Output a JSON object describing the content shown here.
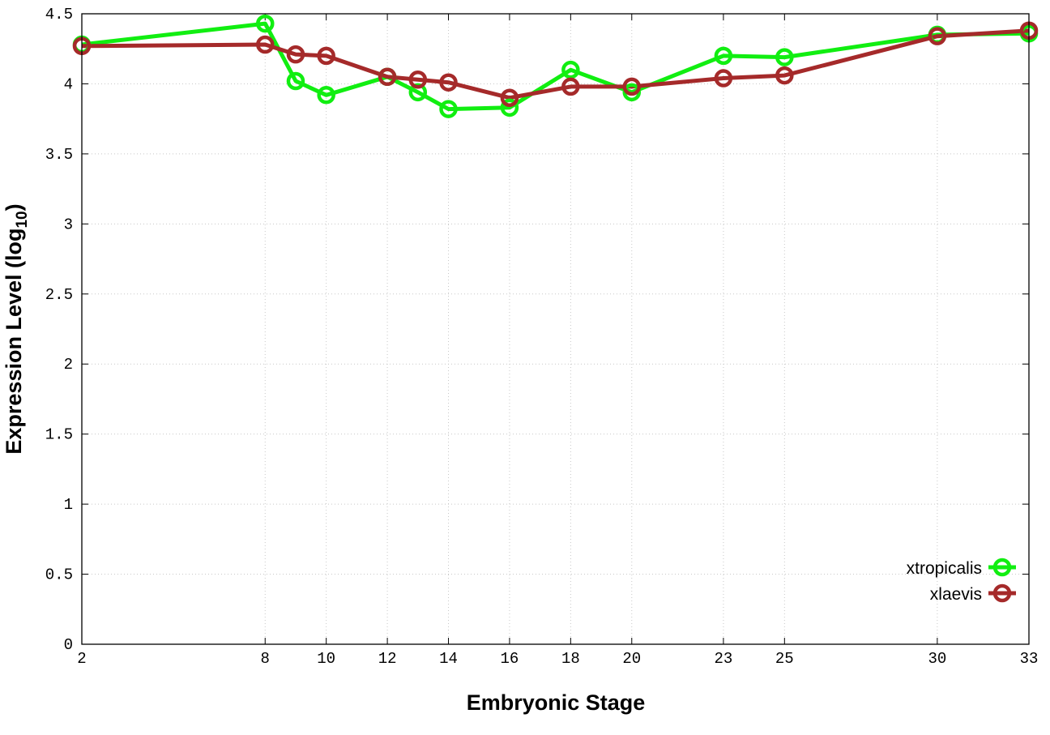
{
  "chart_data": {
    "type": "line",
    "title": "",
    "xlabel": "Embryonic Stage",
    "ylabel_main": "Expression Level (log",
    "ylabel_sub": "10",
    "ylabel_close": ")",
    "xlim": [
      2,
      33
    ],
    "ylim": [
      0,
      4.5
    ],
    "x": [
      2,
      8,
      9,
      10,
      12,
      13,
      14,
      16,
      18,
      20,
      23,
      25,
      30,
      33
    ],
    "x_ticks": [
      2,
      8,
      10,
      12,
      14,
      16,
      18,
      20,
      23,
      25,
      30,
      33
    ],
    "y_ticks": [
      0,
      0.5,
      1,
      1.5,
      2,
      2.5,
      3,
      3.5,
      4,
      4.5
    ],
    "y_tick_labels": [
      "0",
      "0.5",
      "1",
      "1.5",
      "2",
      "2.5",
      "3",
      "3.5",
      "4",
      "4.5"
    ],
    "grid": true,
    "legend_position": "bottom-right",
    "series": [
      {
        "name": "xtropicalis",
        "color": "#11ee11",
        "values": [
          4.28,
          4.43,
          4.02,
          3.92,
          4.05,
          3.94,
          3.82,
          3.83,
          4.1,
          3.94,
          4.2,
          4.19,
          4.35,
          4.36
        ]
      },
      {
        "name": "xlaevis",
        "color": "#a52a2a",
        "values": [
          4.27,
          4.28,
          4.21,
          4.2,
          4.05,
          4.03,
          4.01,
          3.9,
          3.98,
          3.98,
          4.04,
          4.06,
          4.34,
          4.38
        ]
      }
    ]
  }
}
